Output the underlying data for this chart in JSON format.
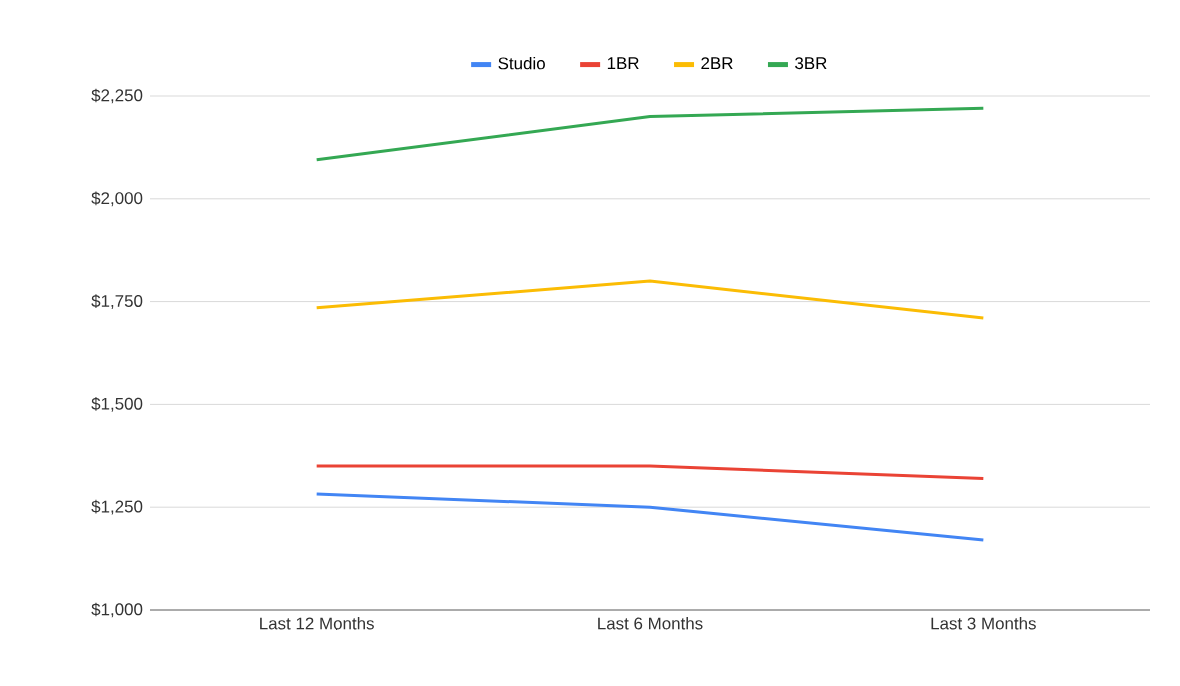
{
  "chart_data": {
    "type": "line",
    "categories": [
      "Last 12 Months",
      "Last 6 Months",
      "Last 3 Months"
    ],
    "series": [
      {
        "name": "Studio",
        "color": "#4285f4",
        "values": [
          1282,
          1250,
          1170
        ]
      },
      {
        "name": "1BR",
        "color": "#ea4335",
        "values": [
          1350,
          1350,
          1320
        ]
      },
      {
        "name": "2BR",
        "color": "#fbbc04",
        "values": [
          1735,
          1800,
          1710
        ]
      },
      {
        "name": "3BR",
        "color": "#34a853",
        "values": [
          2095,
          2200,
          2220
        ]
      }
    ],
    "ylim": [
      1000,
      2250
    ],
    "yticks": [
      {
        "value": 1000,
        "label": "$1,000"
      },
      {
        "value": 1250,
        "label": "$1,250"
      },
      {
        "value": 1500,
        "label": "$1,500"
      },
      {
        "value": 1750,
        "label": "$1,750"
      },
      {
        "value": 2000,
        "label": "$2,000"
      },
      {
        "value": 2250,
        "label": "$2,250"
      }
    ],
    "grid": "y",
    "legend": "top",
    "marker": "none",
    "line_style": "solid"
  }
}
